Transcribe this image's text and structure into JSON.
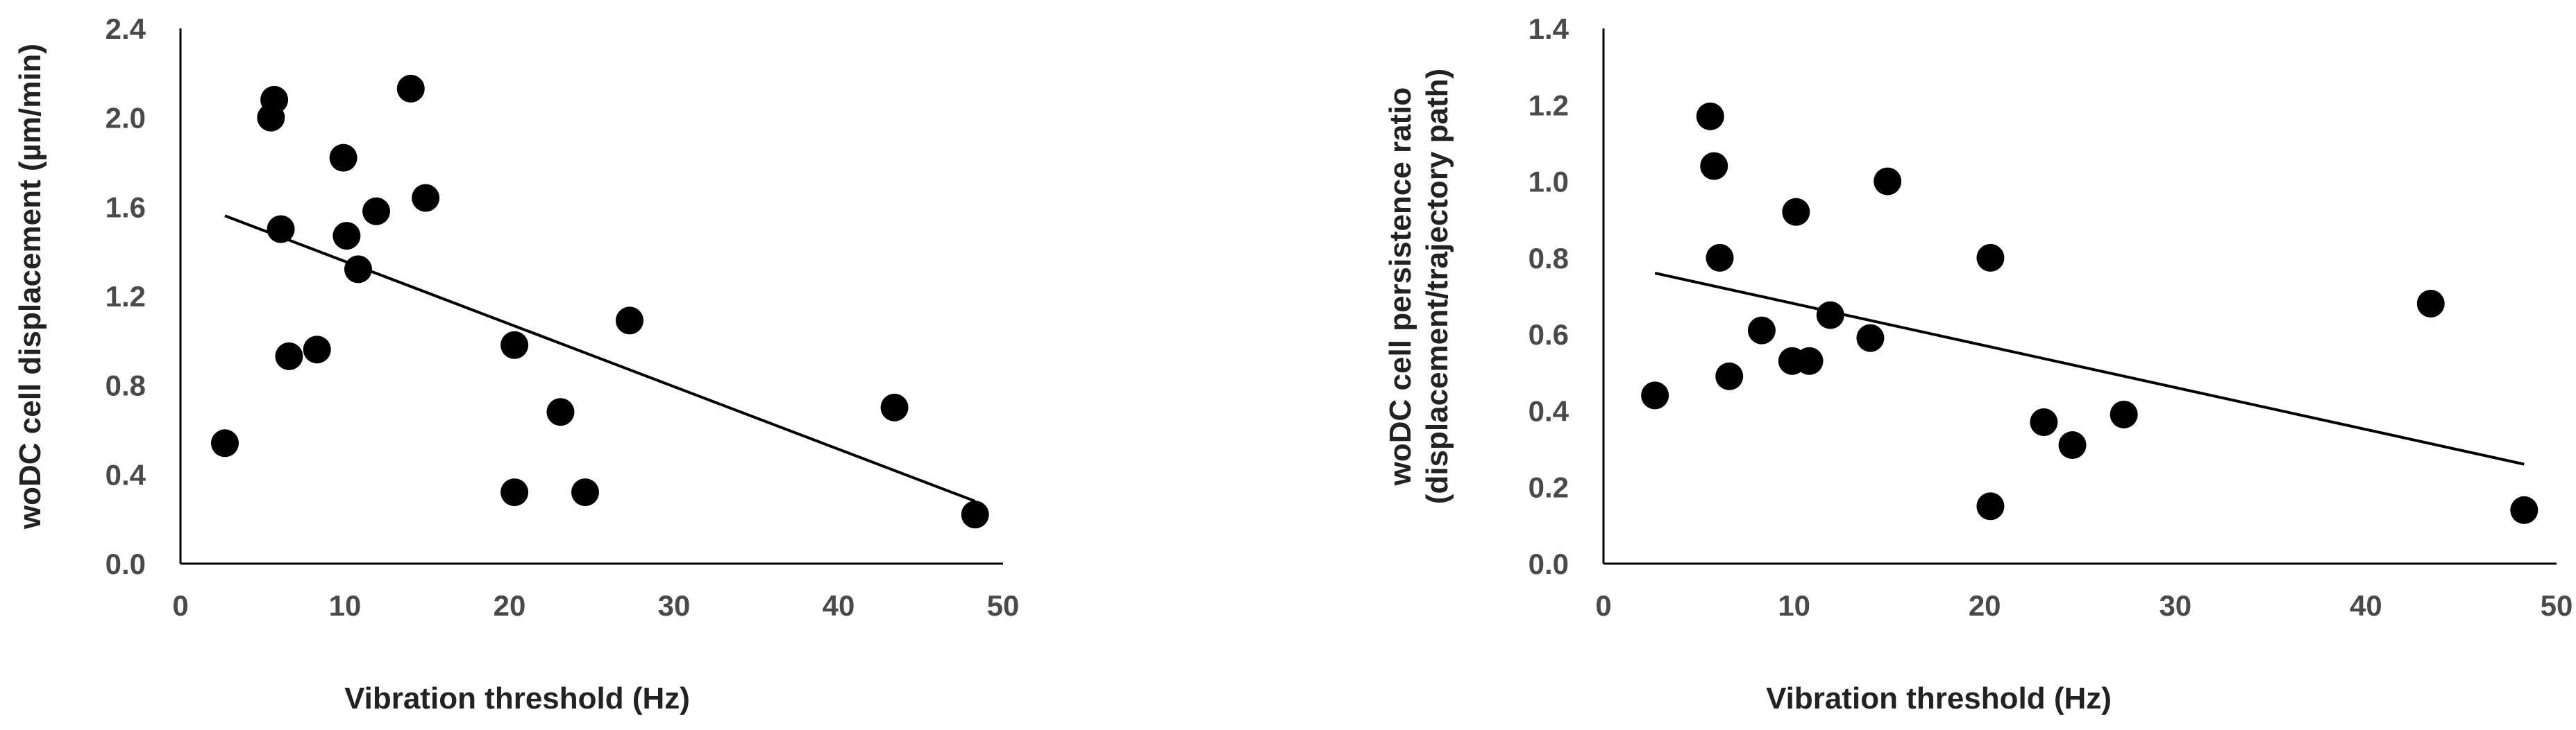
{
  "chart_data": [
    {
      "type": "scatter",
      "xlabel": "Vibration threshold (Hz)",
      "ylabel": "woDC cell displacement (µm/min)",
      "xlim": [
        0,
        50
      ],
      "ylim": [
        0.0,
        2.4
      ],
      "x_ticks": [
        "0",
        "10",
        "20",
        "30",
        "40",
        "50"
      ],
      "y_ticks": [
        "0.0",
        "0.4",
        "0.8",
        "1.2",
        "1.6",
        "2.0",
        "2.4"
      ],
      "points": [
        {
          "x": 2.7,
          "y": 0.54
        },
        {
          "x": 5.7,
          "y": 2.08
        },
        {
          "x": 5.5,
          "y": 2.0
        },
        {
          "x": 6.1,
          "y": 1.5
        },
        {
          "x": 6.6,
          "y": 0.93
        },
        {
          "x": 8.3,
          "y": 0.96
        },
        {
          "x": 9.9,
          "y": 1.82
        },
        {
          "x": 10.1,
          "y": 1.47
        },
        {
          "x": 10.8,
          "y": 1.32
        },
        {
          "x": 11.9,
          "y": 1.58
        },
        {
          "x": 14.0,
          "y": 2.13
        },
        {
          "x": 14.9,
          "y": 1.64
        },
        {
          "x": 20.3,
          "y": 0.98
        },
        {
          "x": 20.3,
          "y": 0.32
        },
        {
          "x": 23.1,
          "y": 0.68
        },
        {
          "x": 24.6,
          "y": 0.32
        },
        {
          "x": 27.3,
          "y": 1.09
        },
        {
          "x": 43.4,
          "y": 0.7
        },
        {
          "x": 48.3,
          "y": 0.22
        }
      ],
      "trendline": {
        "x": [
          2.7,
          48.3
        ],
        "y": [
          1.56,
          0.28
        ]
      },
      "grid": false,
      "legend": "none"
    },
    {
      "type": "scatter",
      "xlabel": "Vibration threshold (Hz)",
      "ylabel_lines": [
        "woDC cell  persistence ratio",
        "(displacement/trajectory path)"
      ],
      "xlim": [
        0,
        50
      ],
      "ylim": [
        0.0,
        1.4
      ],
      "x_ticks": [
        "0",
        "10",
        "20",
        "30",
        "40",
        "50"
      ],
      "y_ticks": [
        "0.0",
        "0.2",
        "0.4",
        "0.6",
        "0.8",
        "1.0",
        "1.2",
        "1.4"
      ],
      "points": [
        {
          "x": 2.7,
          "y": 0.44
        },
        {
          "x": 5.6,
          "y": 1.17
        },
        {
          "x": 5.8,
          "y": 1.04
        },
        {
          "x": 6.1,
          "y": 0.8
        },
        {
          "x": 6.6,
          "y": 0.49
        },
        {
          "x": 8.3,
          "y": 0.61
        },
        {
          "x": 9.9,
          "y": 0.53
        },
        {
          "x": 10.1,
          "y": 0.92
        },
        {
          "x": 10.8,
          "y": 0.53
        },
        {
          "x": 11.9,
          "y": 0.65
        },
        {
          "x": 14.0,
          "y": 0.59
        },
        {
          "x": 14.9,
          "y": 1.0
        },
        {
          "x": 20.3,
          "y": 0.8
        },
        {
          "x": 20.3,
          "y": 0.15
        },
        {
          "x": 23.1,
          "y": 0.37
        },
        {
          "x": 24.6,
          "y": 0.31
        },
        {
          "x": 27.3,
          "y": 0.39
        },
        {
          "x": 43.4,
          "y": 0.68
        },
        {
          "x": 48.3,
          "y": 0.14
        }
      ],
      "trendline": {
        "x": [
          2.7,
          48.3
        ],
        "y": [
          0.76,
          0.26
        ]
      },
      "grid": false,
      "legend": "none"
    }
  ]
}
